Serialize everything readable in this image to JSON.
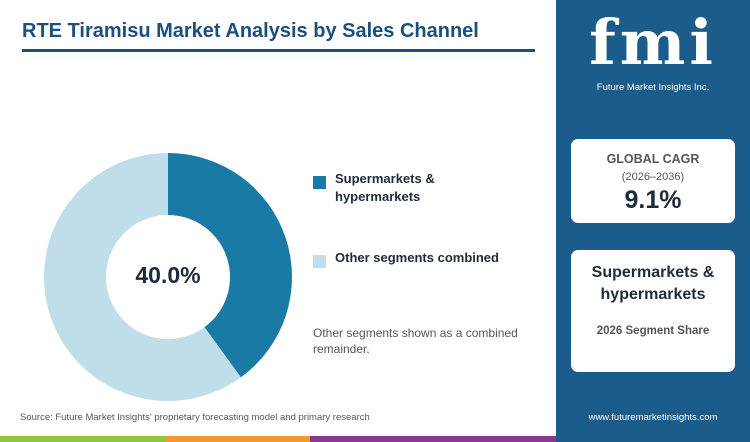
{
  "chart_data": {
    "type": "donut",
    "title": "RTE Tiramisu Market Analysis by Sales Channel",
    "categories": [
      "Supermarkets & hypermarkets",
      "Other segments combined"
    ],
    "values": [
      40,
      60
    ],
    "value_labels": [
      "40.0%",
      null
    ],
    "colors": [
      "#1a7aa6",
      "#bfdeea"
    ],
    "note": "Other segments shown as a combined remainder.",
    "source": "Source: Future Market Insights' proprietary forecasting model and primary research"
  },
  "sidebar": {
    "logo": {
      "mark": "fmi",
      "name": "Future Market Insights Inc."
    },
    "cagr": {
      "label": "GLOBAL CAGR",
      "period": "(2026–2036)",
      "value": "9.1%"
    },
    "segment": {
      "name": "Supermarkets & hypermarkets",
      "metric": "2026 Segment Share"
    },
    "url": "www.futuremarketinsights.com"
  }
}
